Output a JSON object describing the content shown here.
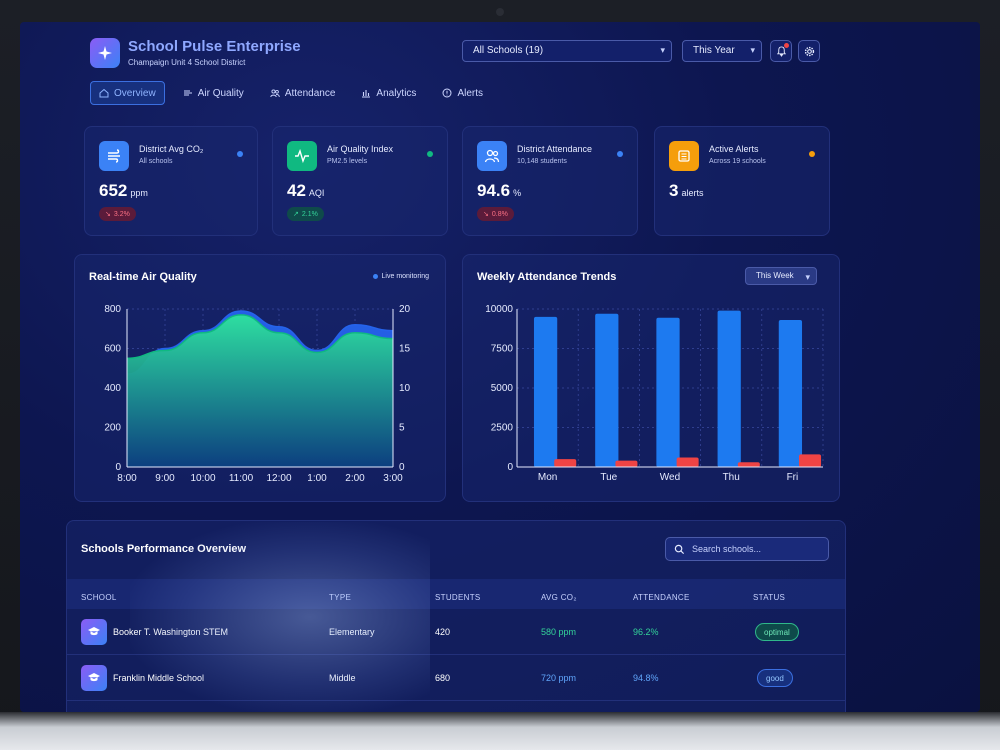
{
  "app": {
    "title": "School Pulse Enterprise",
    "subtitle": "Champaign Unit 4 School District"
  },
  "header": {
    "school_select": "All Schools (19)",
    "period_select": "This Year"
  },
  "nav": {
    "tabs": [
      {
        "label": "Overview",
        "icon": "home-icon",
        "active": true
      },
      {
        "label": "Air Quality",
        "icon": "wind-icon",
        "active": false
      },
      {
        "label": "Attendance",
        "icon": "users-icon",
        "active": false
      },
      {
        "label": "Analytics",
        "icon": "bar-chart-icon",
        "active": false
      },
      {
        "label": "Alerts",
        "icon": "alert-circle-icon",
        "active": false
      }
    ]
  },
  "stats": [
    {
      "title": "District Avg CO₂",
      "sub": "All schools",
      "value": "652",
      "unit": "ppm",
      "badge": "3.2%",
      "badge_type": "down",
      "dot_color": "#3b82f6",
      "icon_color": "#3b82f6"
    },
    {
      "title": "Air Quality Index",
      "sub": "PM2.5 levels",
      "value": "42",
      "unit": "AQI",
      "badge": "2.1%",
      "badge_type": "up",
      "dot_color": "#10b981",
      "icon_color": "#10b981"
    },
    {
      "title": "District Attendance",
      "sub": "10,148 students",
      "value": "94.6",
      "unit": "%",
      "badge": "0.8%",
      "badge_type": "down",
      "dot_color": "#3b82f6",
      "icon_color": "#3b82f6"
    },
    {
      "title": "Active Alerts",
      "sub": "Across 19 schools",
      "value": "3",
      "unit": "alerts",
      "badge": "",
      "dot_color": "#f59e0b",
      "icon_color": "#f59e0b"
    }
  ],
  "air_chart": {
    "title": "Real-time Air Quality",
    "live_label": "Live monitoring"
  },
  "attendance_chart": {
    "title": "Weekly Attendance Trends",
    "period": "This Week"
  },
  "chart_data": [
    {
      "type": "area",
      "title": "Real-time Air Quality",
      "categories": [
        "8:00",
        "9:00",
        "10:00",
        "11:00",
        "12:00",
        "1:00",
        "2:00",
        "3:00"
      ],
      "ylim": [
        0,
        800
      ],
      "yticks": [
        0,
        200,
        400,
        600,
        800
      ],
      "y2lim": [
        0,
        20
      ],
      "y2ticks": [
        0,
        5,
        10,
        15,
        20
      ],
      "series": [
        {
          "values": [
            470,
            600,
            690,
            790,
            710,
            590,
            720,
            690
          ],
          "color": "#2563eb"
        },
        {
          "values": [
            550,
            590,
            680,
            770,
            680,
            580,
            680,
            650
          ],
          "color": "#10b981"
        }
      ]
    },
    {
      "type": "bar",
      "title": "Weekly Attendance Trends",
      "categories": [
        "Mon",
        "Tue",
        "Wed",
        "Thu",
        "Fri"
      ],
      "ylim": [
        0,
        10000
      ],
      "yticks": [
        0,
        2500,
        5000,
        7500,
        10000
      ],
      "series": [
        {
          "values": [
            9500,
            9700,
            9450,
            9900,
            9300
          ],
          "color": "#1d7af0"
        },
        {
          "values": [
            500,
            400,
            600,
            300,
            800
          ],
          "color": "#ef4444"
        }
      ]
    }
  ],
  "table": {
    "title": "Schools Performance Overview",
    "search_placeholder": "Search schools...",
    "headers": {
      "school": "SCHOOL",
      "type": "TYPE",
      "students": "STUDENTS",
      "co2": "AVG CO₂",
      "attendance": "ATTENDANCE",
      "status": "STATUS"
    },
    "rows": [
      {
        "school": "Booker T. Washington STEM",
        "type": "Elementary",
        "students": "420",
        "co2": "580 ppm",
        "attendance": "96.2%",
        "status": "optimal"
      },
      {
        "school": "Franklin Middle School",
        "type": "Middle",
        "students": "680",
        "co2": "720 ppm",
        "attendance": "94.8%",
        "status": "good"
      }
    ]
  }
}
